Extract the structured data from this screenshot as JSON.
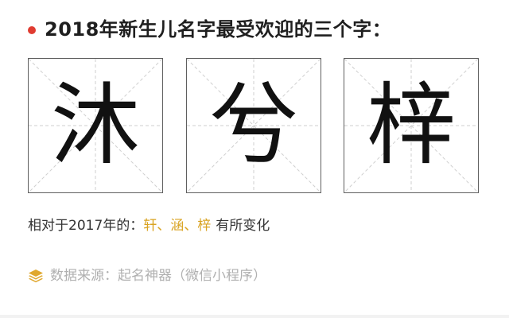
{
  "header": {
    "title": "2018年新生儿名字最受欢迎的三个字：",
    "dot_color": "#e03c31"
  },
  "characters": [
    {
      "char": "沐"
    },
    {
      "char": "兮"
    },
    {
      "char": "梓"
    }
  ],
  "change_note": {
    "prefix": "相对于2017年的：",
    "highlight": "轩、涵、梓",
    "suffix": "有所变化",
    "highlight_color": "#d9a321"
  },
  "source": {
    "icon": "layers-icon",
    "icon_color": "#e0a82e",
    "text": "数据来源：起名神器（微信小程序）"
  }
}
